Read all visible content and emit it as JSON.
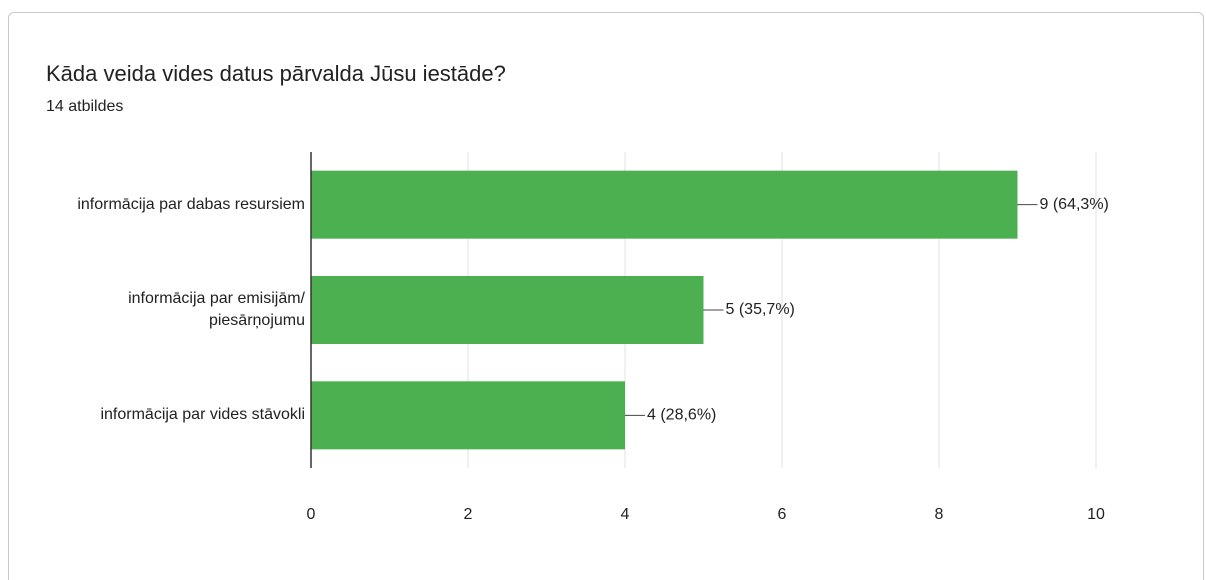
{
  "chart_data": {
    "type": "hbar",
    "title": "Kāda veida vides datus pārvalda Jūsu iestāde?",
    "subtitle": "14 atbildes",
    "categories": [
      "informācija par dabas resursiem",
      "informācija par emisijām/ piesārņojumu",
      "informācija par vides stāvokli"
    ],
    "values": [
      9,
      5,
      4
    ],
    "value_labels": [
      "9 (64,3%)",
      "5 (35,7%)",
      "4 (28,6%)"
    ],
    "color": "#4caf50",
    "xlim": [
      0,
      10
    ],
    "xticks": [
      0,
      2,
      4,
      6,
      8,
      10
    ],
    "grid": true
  }
}
